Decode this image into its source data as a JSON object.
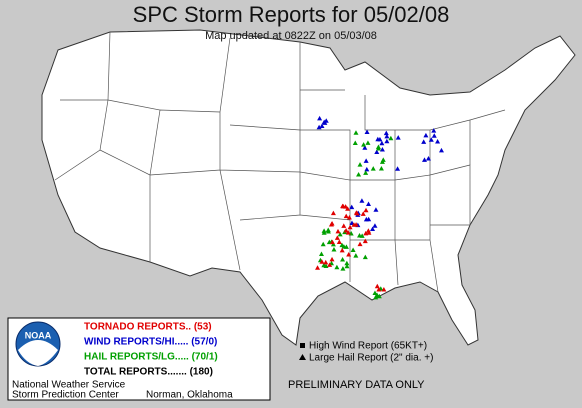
{
  "header": {
    "title": "SPC Storm Reports for 05/02/08",
    "subtitle": "Map updated at 0822Z on 05/03/08"
  },
  "legend": {
    "tornado": "TORNADO REPORTS.. (53)",
    "wind": "WIND REPORTS/HI..... (57/0)",
    "hail": "HAIL REPORTS/LG..... (70/1)",
    "total": "TOTAL REPORTS....... (180)"
  },
  "logo": "NOAA",
  "credits": {
    "line1": "National Weather Service",
    "line2": "Storm Prediction Center",
    "location": "Norman, Oklahoma"
  },
  "key": {
    "high_wind": "High Wind Report (65KT+)",
    "large_hail": "Large Hail Report (2\" dia. +)"
  },
  "footer": "PRELIMINARY DATA ONLY"
}
